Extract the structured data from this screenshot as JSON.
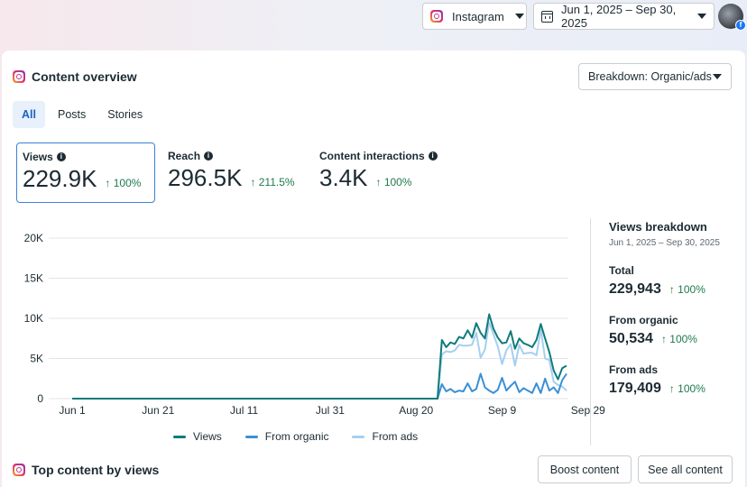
{
  "topbar": {
    "platform_label": "Instagram",
    "date_range_label": "Jun 1, 2025 – Sep 30, 2025"
  },
  "overview": {
    "title": "Content overview",
    "breakdown_label": "Breakdown: Organic/ads",
    "tabs": [
      {
        "label": "All",
        "active": true
      },
      {
        "label": "Posts",
        "active": false
      },
      {
        "label": "Stories",
        "active": false
      }
    ],
    "metrics": [
      {
        "label": "Views",
        "value": "229.9K",
        "change": "↑ 100%",
        "selected": true
      },
      {
        "label": "Reach",
        "value": "296.5K",
        "change": "↑ 211.5%",
        "selected": false
      },
      {
        "label": "Content interactions",
        "value": "3.4K",
        "change": "↑ 100%",
        "selected": false
      }
    ]
  },
  "chart_data": {
    "type": "line",
    "title": "",
    "xlabel": "",
    "ylabel": "",
    "ylim": [
      0,
      20000
    ],
    "y_ticks": [
      "0",
      "5K",
      "10K",
      "15K",
      "20K"
    ],
    "x_ticks": [
      "Jun 1",
      "Jun 21",
      "Jul 11",
      "Jul 31",
      "Aug 20",
      "Sep 9",
      "Sep 29"
    ],
    "grid": true,
    "legend_position": "bottom-center",
    "series": [
      {
        "name": "Views",
        "color": "#0f7b7b",
        "values": [
          0,
          0,
          0,
          0,
          0,
          0,
          0,
          0,
          0,
          0,
          0,
          0,
          0,
          0,
          0,
          0,
          0,
          0,
          0,
          0,
          0,
          0,
          0,
          0,
          0,
          0,
          0,
          0,
          0,
          0,
          0,
          0,
          0,
          0,
          0,
          0,
          0,
          0,
          0,
          0,
          0,
          0,
          0,
          0,
          0,
          0,
          0,
          0,
          0,
          0,
          0,
          0,
          0,
          0,
          0,
          0,
          0,
          0,
          0,
          0,
          0,
          0,
          0,
          0,
          0,
          0,
          0,
          0,
          0,
          0,
          0,
          0,
          0,
          0,
          0,
          0,
          0,
          0,
          0,
          0,
          0,
          0,
          0,
          0,
          0,
          0,
          7300,
          6400,
          7000,
          6800,
          7700,
          7500,
          8500,
          7600,
          9400,
          8200,
          7500,
          10500,
          8700,
          7600,
          6900,
          7000,
          8400,
          6200,
          7500,
          6900,
          6700,
          6400,
          7300,
          9300,
          7500,
          5800,
          3500,
          2400,
          3800,
          4100
        ]
      },
      {
        "name": "From organic",
        "color": "#3b8fd6",
        "values": [
          0,
          0,
          0,
          0,
          0,
          0,
          0,
          0,
          0,
          0,
          0,
          0,
          0,
          0,
          0,
          0,
          0,
          0,
          0,
          0,
          0,
          0,
          0,
          0,
          0,
          0,
          0,
          0,
          0,
          0,
          0,
          0,
          0,
          0,
          0,
          0,
          0,
          0,
          0,
          0,
          0,
          0,
          0,
          0,
          0,
          0,
          0,
          0,
          0,
          0,
          0,
          0,
          0,
          0,
          0,
          0,
          0,
          0,
          0,
          0,
          0,
          0,
          0,
          0,
          0,
          0,
          0,
          0,
          0,
          0,
          0,
          0,
          0,
          0,
          0,
          0,
          0,
          0,
          0,
          0,
          0,
          0,
          0,
          0,
          0,
          0,
          1800,
          900,
          1200,
          800,
          1000,
          900,
          1900,
          900,
          1200,
          3100,
          1400,
          1000,
          700,
          1100,
          2600,
          1000,
          1600,
          2100,
          800,
          1300,
          1000,
          700,
          1900,
          700,
          2500,
          1000,
          1400,
          700,
          2300,
          3100
        ]
      },
      {
        "name": "From ads",
        "color": "#a6cff0",
        "values": [
          0,
          0,
          0,
          0,
          0,
          0,
          0,
          0,
          0,
          0,
          0,
          0,
          0,
          0,
          0,
          0,
          0,
          0,
          0,
          0,
          0,
          0,
          0,
          0,
          0,
          0,
          0,
          0,
          0,
          0,
          0,
          0,
          0,
          0,
          0,
          0,
          0,
          0,
          0,
          0,
          0,
          0,
          0,
          0,
          0,
          0,
          0,
          0,
          0,
          0,
          0,
          0,
          0,
          0,
          0,
          0,
          0,
          0,
          0,
          0,
          0,
          0,
          0,
          0,
          0,
          0,
          0,
          0,
          0,
          0,
          0,
          0,
          0,
          0,
          0,
          0,
          0,
          0,
          0,
          0,
          0,
          0,
          0,
          0,
          0,
          0,
          5500,
          5900,
          5800,
          6000,
          6700,
          6600,
          6600,
          6700,
          8200,
          5100,
          6100,
          9500,
          8000,
          6500,
          4300,
          6000,
          6800,
          4100,
          6700,
          5600,
          5700,
          5700,
          5400,
          8600,
          5000,
          4800,
          2100,
          1700,
          1500,
          1000
        ]
      }
    ]
  },
  "breakdown": {
    "title": "Views breakdown",
    "date": "Jun 1, 2025 – Sep 30, 2025",
    "rows": [
      {
        "label": "Total",
        "value": "229,943",
        "change": "↑ 100%"
      },
      {
        "label": "From organic",
        "value": "50,534",
        "change": "↑ 100%"
      },
      {
        "label": "From ads",
        "value": "179,409",
        "change": "↑ 100%"
      }
    ]
  },
  "top_content": {
    "title": "Top content by views",
    "boost_label": "Boost content",
    "see_all_label": "See all content"
  }
}
